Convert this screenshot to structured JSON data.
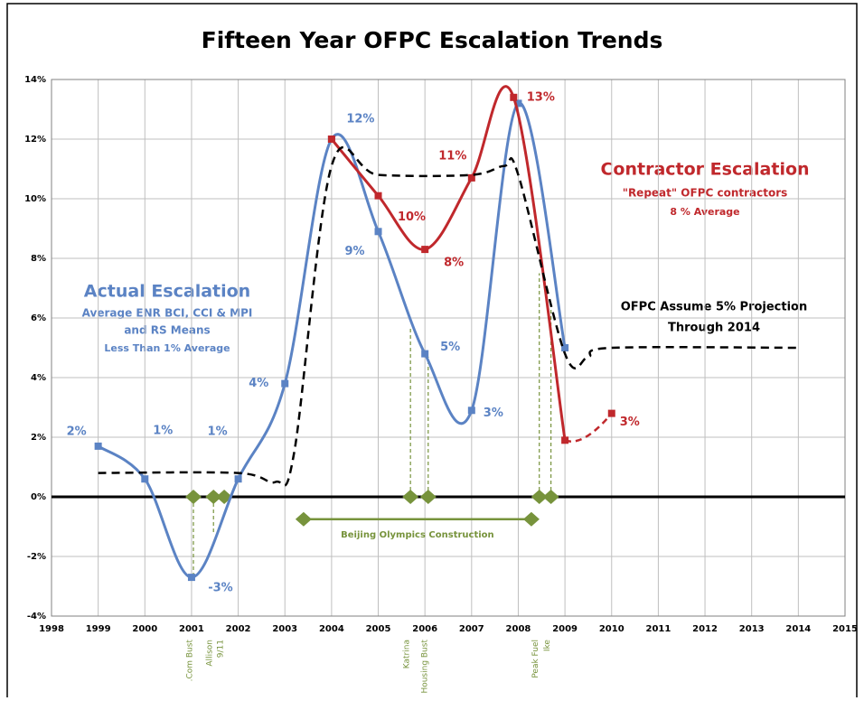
{
  "chart_data": {
    "type": "line",
    "title": "Fifteen Year OFPC Escalation Trends",
    "xlim": [
      1998,
      2015
    ],
    "xticks": [
      1998,
      1999,
      2000,
      2001,
      2002,
      2003,
      2004,
      2005,
      2006,
      2007,
      2008,
      2009,
      2010,
      2011,
      2012,
      2013,
      2014,
      2015
    ],
    "ylim": [
      -4,
      14
    ],
    "yticks": [
      {
        "value": -4,
        "label": "-4%"
      },
      {
        "value": -2,
        "label": "-2%"
      },
      {
        "value": 0,
        "label": "0%"
      },
      {
        "value": 2,
        "label": "2%"
      },
      {
        "value": 4,
        "label": "4%"
      },
      {
        "value": 6,
        "label": "6%"
      },
      {
        "value": 8,
        "label": "8%"
      },
      {
        "value": 10,
        "label": "10%"
      },
      {
        "value": 12,
        "label": "12%"
      },
      {
        "value": 14,
        "label": "14%"
      }
    ],
    "grid": true,
    "series": [
      {
        "color": "#5b83c4",
        "marker": "square",
        "x": [
          1999,
          2000,
          2001,
          2002,
          2003,
          2004,
          2005,
          2006,
          2007,
          2008,
          2009
        ],
        "values": [
          1.7,
          0.6,
          -2.7,
          0.6,
          3.8,
          12,
          8.9,
          4.8,
          2.9,
          13.2,
          5
        ],
        "value_labels": [
          "2%",
          "1%",
          "-3%",
          "1%",
          "4%",
          "12%",
          "9%",
          "5%",
          "3%",
          null,
          null
        ]
      },
      {
        "color": "#c0282c",
        "marker": "square",
        "last_segment": "dashed",
        "x": [
          2004,
          2005,
          2006,
          2007,
          2007.9,
          2009,
          2010
        ],
        "values": [
          12,
          10.1,
          8.3,
          10.7,
          13.4,
          1.9,
          2.8
        ],
        "value_labels": [
          null,
          "10%",
          "8%",
          "11%",
          "13%",
          null,
          "3%"
        ]
      },
      {
        "color": "#000000",
        "dashed": true,
        "x": [
          1999,
          2002,
          2002.8,
          2003.2,
          2004,
          2005,
          2007,
          2007.7,
          2008,
          2009,
          2009.5,
          2010,
          2014
        ],
        "values": [
          0.8,
          0.8,
          0.5,
          1.5,
          11.1,
          10.8,
          10.8,
          11.1,
          10.8,
          4.8,
          4.7,
          5,
          5
        ]
      }
    ],
    "events": [
      {
        "label": ".Com Bust",
        "x": 2001.04,
        "y": 0,
        "reach": -2.7
      },
      {
        "label": "Allison",
        "x": 2001.47,
        "y": 0,
        "reach": -1.2
      },
      {
        "label": "9/11",
        "x": 2001.7,
        "y": 0,
        "reach": 0
      },
      {
        "label": "Katrina",
        "x": 2005.69,
        "y": 0,
        "reach": 5.7
      },
      {
        "label": "Housing Bust",
        "x": 2006.07,
        "y": 0,
        "reach": 4.7
      },
      {
        "label": "Peak Fuel",
        "x": 2008.45,
        "y": 0,
        "reach": 7.5
      },
      {
        "label": "Ike",
        "x": 2008.7,
        "y": 0,
        "reach": 6.5
      }
    ],
    "period": {
      "label": "Beijing Olympics Construction",
      "start": 2003.4,
      "end": 2008.28,
      "y": -0.75
    },
    "annotations": [
      "Actual Escalation",
      "Average ENR BCI, CCI & MPI",
      "and RS Means",
      "Less Than 1% Average",
      "Contractor Escalation",
      "\"Repeat\" OFPC contractors",
      "8 % Average",
      "OFPC Assume 5% Projection",
      "Through 2014"
    ]
  }
}
